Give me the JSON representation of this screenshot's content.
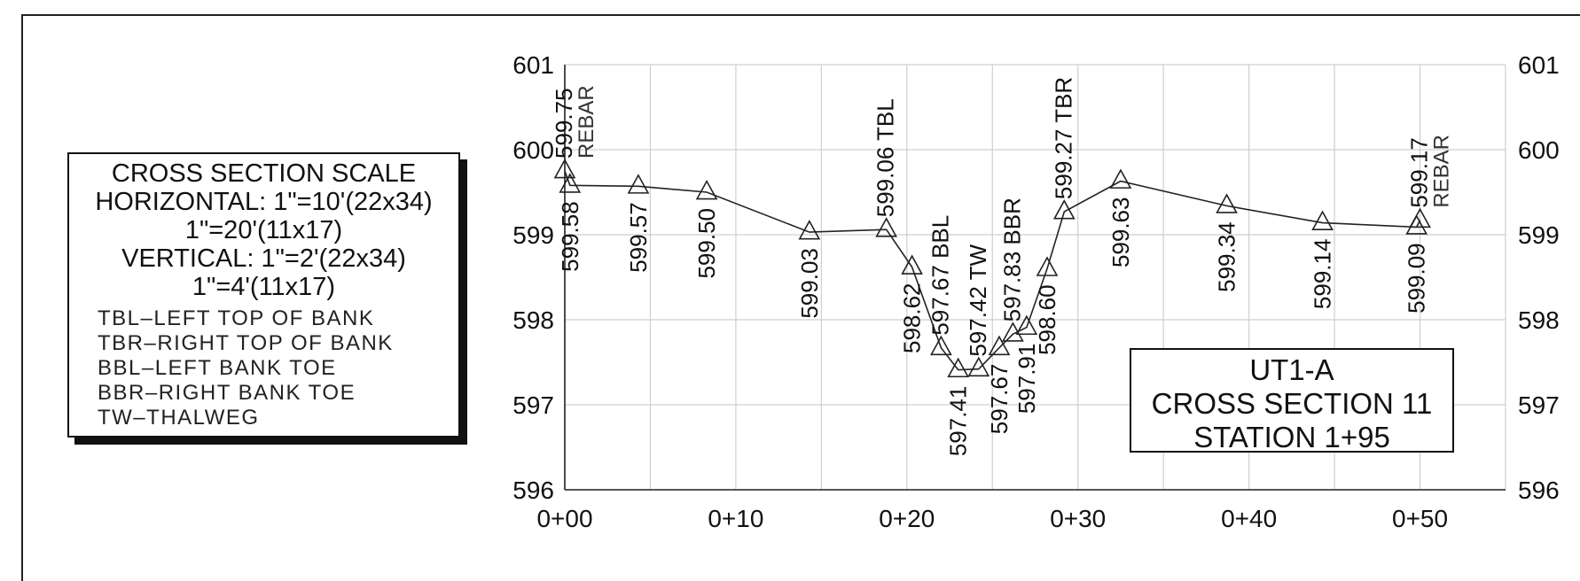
{
  "scale_box": {
    "title": "CROSS SECTION SCALE",
    "horizontal": "HORIZONTAL: 1\"=10'(22x34)",
    "horizontal_alt": "1\"=20'(11x17)",
    "vertical": "VERTICAL: 1\"=2'(22x34)",
    "vertical_alt": "1\"=4'(11x17)",
    "abbreviations": [
      "TBL–LEFT TOP OF BANK",
      "TBR–RIGHT TOP OF BANK",
      "BBL–LEFT BANK TOE",
      "BBR–RIGHT BANK TOE",
      "TW–THALWEG"
    ]
  },
  "title_box": {
    "line1": "UT1-A",
    "line2": "CROSS SECTION 11",
    "line3": "STATION 1+95"
  },
  "colors": {
    "line": "#222222",
    "grid": "#cfcfcf",
    "text": "#111111",
    "label": "#333333"
  },
  "chart_data": {
    "type": "line",
    "title": "",
    "xlabel": "",
    "ylabel": "",
    "xlim": [
      0,
      55
    ],
    "ylim": [
      596,
      601
    ],
    "grid": true,
    "xticks": [
      0,
      10,
      20,
      30,
      40,
      50
    ],
    "xtick_labels": [
      "0+00",
      "0+10",
      "0+20",
      "0+30",
      "0+40",
      "0+50"
    ],
    "yticks": [
      596,
      597,
      598,
      599,
      600,
      601
    ],
    "ytick_labels": [
      "596",
      "597",
      "598",
      "599",
      "600",
      "601"
    ],
    "marker": "triangle",
    "points": [
      {
        "x": 0.0,
        "y": 599.75,
        "label": "599.75",
        "note": "REBAR",
        "side": "above"
      },
      {
        "x": 0.3,
        "y": 599.58,
        "label": "599.58",
        "note": "",
        "side": "below"
      },
      {
        "x": 4.3,
        "y": 599.57,
        "label": "599.57",
        "note": "",
        "side": "below"
      },
      {
        "x": 8.3,
        "y": 599.5,
        "label": "599.50",
        "note": "",
        "side": "below"
      },
      {
        "x": 14.3,
        "y": 599.03,
        "label": "599.03",
        "note": "",
        "side": "below"
      },
      {
        "x": 18.8,
        "y": 599.06,
        "label": "599.06",
        "note": "TBL",
        "side": "above"
      },
      {
        "x": 20.3,
        "y": 598.62,
        "label": "598.62",
        "note": "",
        "side": "below"
      },
      {
        "x": 22.0,
        "y": 597.67,
        "label": "597.67",
        "note": "BBL",
        "side": "above"
      },
      {
        "x": 23.0,
        "y": 597.41,
        "label": "597.41",
        "note": "",
        "side": "below"
      },
      {
        "x": 24.2,
        "y": 597.42,
        "label": "597.42",
        "note": "TW",
        "side": "above"
      },
      {
        "x": 25.4,
        "y": 597.67,
        "label": "597.67",
        "note": "",
        "side": "below"
      },
      {
        "x": 26.2,
        "y": 597.83,
        "label": "597.83",
        "note": "BBR",
        "side": "above"
      },
      {
        "x": 27.0,
        "y": 597.91,
        "label": "597.91",
        "note": "",
        "side": "below"
      },
      {
        "x": 28.2,
        "y": 598.6,
        "label": "598.60",
        "note": "",
        "side": "below"
      },
      {
        "x": 29.2,
        "y": 599.27,
        "label": "599.27",
        "note": "TBR",
        "side": "above"
      },
      {
        "x": 32.5,
        "y": 599.63,
        "label": "599.63",
        "note": "",
        "side": "below"
      },
      {
        "x": 38.7,
        "y": 599.34,
        "label": "599.34",
        "note": "",
        "side": "below"
      },
      {
        "x": 44.3,
        "y": 599.14,
        "label": "599.14",
        "note": "",
        "side": "below"
      },
      {
        "x": 49.8,
        "y": 599.09,
        "label": "599.09",
        "note": "",
        "side": "below"
      },
      {
        "x": 50.0,
        "y": 599.17,
        "label": "599.17",
        "note": "REBAR",
        "side": "above"
      }
    ]
  }
}
